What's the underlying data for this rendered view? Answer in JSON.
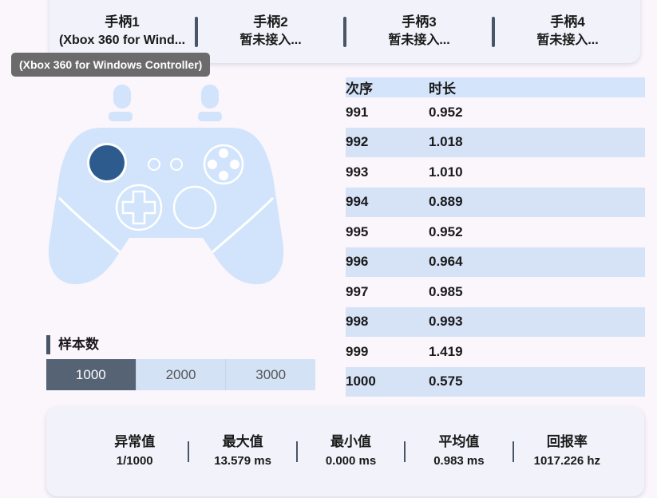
{
  "tabs": [
    {
      "title": "手柄1",
      "subtitle": "(Xbox 360 for Wind..."
    },
    {
      "title": "手柄2",
      "subtitle": "暂未接入..."
    },
    {
      "title": "手柄3",
      "subtitle": "暂未接入..."
    },
    {
      "title": "手柄4",
      "subtitle": "暂未接入..."
    }
  ],
  "tooltip": "(Xbox 360 for Windows Controller)",
  "colors": {
    "controller_body": "#d1e4fb",
    "active_stick": "#2d5b8e",
    "accent": "#566374"
  },
  "samples": {
    "label": "样本数",
    "options": [
      "1000",
      "2000",
      "3000"
    ],
    "selected": "1000"
  },
  "table": {
    "headers": [
      "次序",
      "时长"
    ],
    "rows": [
      [
        "991",
        "0.952"
      ],
      [
        "992",
        "1.018"
      ],
      [
        "993",
        "1.010"
      ],
      [
        "994",
        "0.889"
      ],
      [
        "995",
        "0.952"
      ],
      [
        "996",
        "0.964"
      ],
      [
        "997",
        "0.985"
      ],
      [
        "998",
        "0.993"
      ],
      [
        "999",
        "1.419"
      ],
      [
        "1000",
        "0.575"
      ]
    ]
  },
  "stats": [
    {
      "label": "异常值",
      "value": "1/1000"
    },
    {
      "label": "最大值",
      "value": "13.579 ms"
    },
    {
      "label": "最小值",
      "value": "0.000 ms"
    },
    {
      "label": "平均值",
      "value": "0.983 ms"
    },
    {
      "label": "回报率",
      "value": "1017.226 hz"
    }
  ]
}
